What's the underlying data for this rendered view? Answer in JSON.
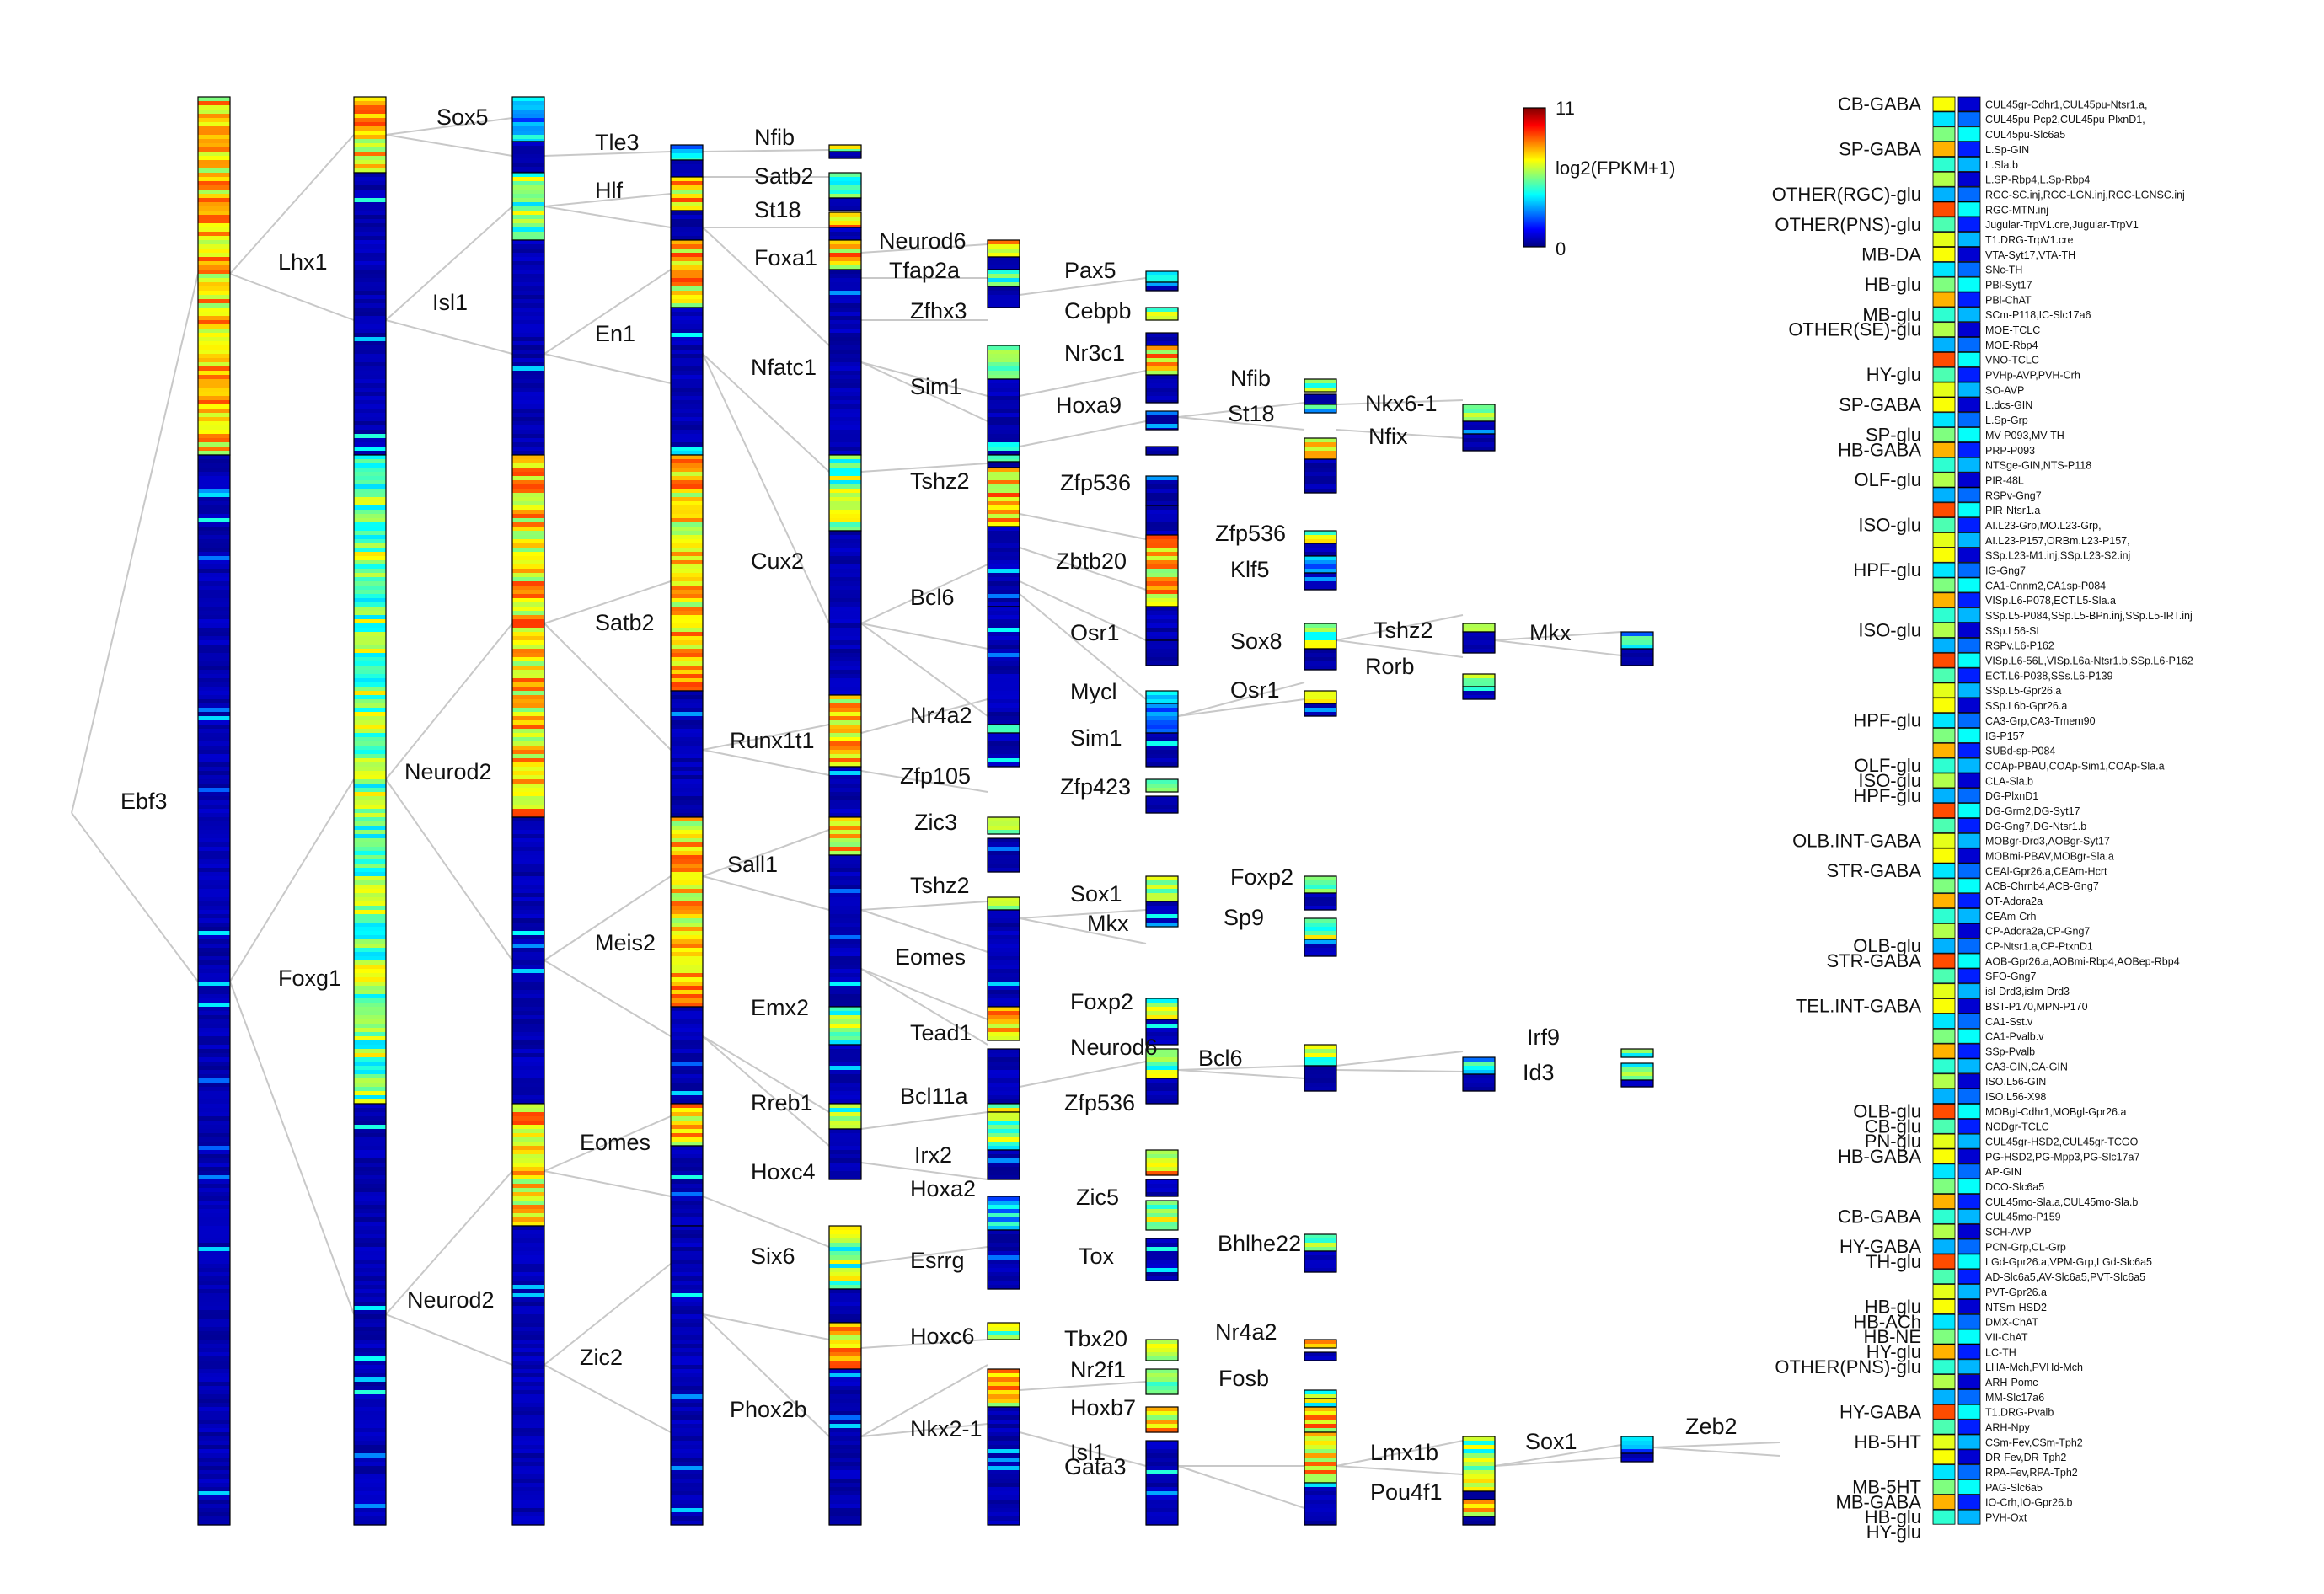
{
  "colorbar": {
    "max_label": "11",
    "min_label": "0",
    "title": "log2(FPKM+1)"
  },
  "colormap": [
    "#00007f",
    "#0000ff",
    "#007fff",
    "#00ffff",
    "#7fff7f",
    "#ffff00",
    "#ff7f00",
    "#ff0000",
    "#7f0000"
  ],
  "tree_genes": [
    "Ebf3",
    "Lhx1",
    "Foxg1",
    "Sox5",
    "Isl1",
    "Neurod2",
    "Neurod2",
    "Tle3",
    "Hlf",
    "En1",
    "Satb2",
    "Meis2",
    "Eomes",
    "Zic2",
    "Nfib",
    "Satb2",
    "St18",
    "Foxa1",
    "Nfatc1",
    "Cux2",
    "Runx1t1",
    "Sall1",
    "Emx2",
    "Rreb1",
    "Hoxc4",
    "Six6",
    "Phox2b",
    "Neurod6",
    "Tfap2a",
    "Zfhx3",
    "Sim1",
    "Tshz2",
    "Bcl6",
    "Nr4a2",
    "Zfp105",
    "Zic3",
    "Tshz2",
    "Eomes",
    "Tead1",
    "Bcl11a",
    "Irx2",
    "Hoxa2",
    "Esrrg",
    "Hoxc6",
    "Nkx2-1",
    "Pax5",
    "Cebpb",
    "Nr3c1",
    "Hoxa9",
    "Zfp536",
    "Zbtb20",
    "Osr1",
    "Mycl",
    "Sim1",
    "Zfp423",
    "Sox1",
    "Mkx",
    "Foxp2",
    "Neurod6",
    "Zfp536",
    "Zic5",
    "Tox",
    "Tbx20",
    "Nr2f1",
    "Isl1",
    "Hoxb7",
    "Gata3",
    "Nfib",
    "St18",
    "Zfp536",
    "Klf5",
    "Sox8",
    "Osr1",
    "Foxp2",
    "Sp9",
    "Bcl6",
    "Bhlhe22",
    "Nr4a2",
    "Fosb",
    "Lmx1b",
    "Pou4f1",
    "Nkx6-1",
    "Nfix",
    "Tshz2",
    "Rorb",
    "Irf9",
    "Id3",
    "Sox1",
    "Mkx",
    "Zeb2"
  ],
  "groups": [
    "CB-GABA",
    "SP-GABA",
    "OTHER(RGC)-glu",
    "OTHER(PNS)-glu",
    "MB-DA",
    "HB-glu",
    "MB-glu",
    "OTHER(SE)-glu",
    "HY-glu",
    "SP-GABA",
    "SP-glu",
    "HB-GABA",
    "OLF-glu",
    "ISO-glu",
    "HPF-glu",
    "ISO-glu",
    "HPF-glu",
    "OLF-glu",
    "ISO-glu",
    "HPF-glu",
    "OLB.INT-GABA",
    "STR-GABA",
    "OLB-glu",
    "STR-GABA",
    "TEL.INT-GABA",
    "OLB-glu",
    "CB-glu",
    "PN-glu",
    "HB-GABA",
    "CB-GABA",
    "HY-GABA",
    "TH-glu",
    "HB-glu",
    "HB-ACh",
    "HB-NE",
    "HY-glu",
    "OTHER(PNS)-glu",
    "HY-GABA",
    "HB-5HT",
    "MB-5HT",
    "MB-GABA",
    "HB-glu",
    "HY-glu"
  ],
  "clusters": [
    "CUL45gr-Cdhr1,CUL45pu-Ntsr1.a,",
    "CUL45pu-Pcp2,CUL45pu-PlxnD1,",
    "CUL45pu-Slc6a5",
    "L.Sp-GIN",
    "L.Sla.b",
    "L.SP-Rbp4,L.Sp-Rbp4",
    "RGC-SC.inj,RGC-LGN.inj,RGC-LGNSC.inj",
    "RGC-MTN.inj",
    "Jugular-TrpV1.cre,Jugular-TrpV1",
    "T1.DRG-TrpV1.cre",
    "VTA-Syt17,VTA-TH",
    "SNc-TH",
    "PBl-Syt17",
    "PBl-ChAT",
    "SCm-P118,IC-Slc17a6",
    "MOE-TCLC",
    "MOE-Rbp4",
    "VNO-TCLC",
    "PVHp-AVP,PVH-Crh",
    "SO-AVP",
    "L.dcs-GIN",
    "L.Sp-Grp",
    "MV-P093,MV-TH",
    "PRP-P093",
    "NTSge-GIN,NTS-P118",
    "PIR-48L",
    "RSPv-Gng7",
    "PIR-Ntsr1.a",
    "AI.L23-Grp,MO.L23-Grp,",
    "AI.L23-P157,ORBm.L23-P157,",
    "SSp.L23-M1.inj,SSp.L23-S2.inj",
    "IG-Gng7",
    "CA1-Cnnm2,CA1sp-P084",
    "VISp.L6-P078,ECT.L5-Sla.a",
    "SSp.L5-P084,SSp.L5-BPn.inj,SSp.L5-IRT.inj",
    "SSp.L56-SL",
    "RSPv.L6-P162",
    "VISp.L6-56L,VISp.L6a-Ntsr1.b,SSp.L6-P162",
    "ECT.L6-P038,SSs.L6-P139",
    "SSp.L5-Gpr26.a",
    "SSp.L6b-Gpr26.a",
    "CA3-Grp,CA3-Tmem90",
    "IG-P157",
    "SUBd-sp-P084",
    "COAp-PBAU,COAp-Sim1,COAp-Sla.a",
    "CLA-Sla.b",
    "DG-PlxnD1",
    "DG-Grm2,DG-Syt17",
    "DG-Gng7,DG-Ntsr1.b",
    "MOBgr-Drd3,AOBgr-Syt17",
    "MOBmi-PBAV,MOBgr-Sla.a",
    "CEAl-Gpr26.a,CEAm-Hcrt",
    "ACB-Chrnb4,ACB-Gng7",
    "OT-Adora2a",
    "CEAm-Crh",
    "CP-Adora2a,CP-Gng7",
    "CP-Ntsr1.a,CP-PtxnD1",
    "AOB-Gpr26.a,AOBmi-Rbp4,AOBep-Rbp4",
    "SFO-Gng7",
    "isl-Drd3,islm-Drd3",
    "BST-P170,MPN-P170",
    "CA1-Sst.v",
    "CA1-Pvalb.v",
    "SSp-Pvalb",
    "CA3-GIN,CA-GIN",
    "ISO.L56-GIN",
    "ISO.L56-X98",
    "MOBgl-Cdhr1,MOBgl-Gpr26.a",
    "NODgr-TCLC",
    "CUL45gr-HSD2,CUL45gr-TCGO",
    "PG-HSD2,PG-Mpp3,PG-Slc17a7",
    "AP-GIN",
    "DCO-Slc6a5",
    "CUL45mo-Sla.a,CUL45mo-Sla.b",
    "CUL45mo-P159",
    "SCH-AVP",
    "PCN-Grp,CL-Grp",
    "LGd-Gpr26.a,VPM-Grp,LGd-Slc6a5",
    "AD-Slc6a5,AV-Slc6a5,PVT-Slc6a5",
    "PVT-Gpr26.a",
    "NTSm-HSD2",
    "DMX-ChAT",
    "VII-ChAT",
    "LC-TH",
    "LHA-Mch,PVHd-Mch",
    "ARH-Pomc",
    "MM-Slc17a6",
    "T1.DRG-Pvalb",
    "ARH-Npy",
    "CSm-Fev,CSm-Tph2",
    "DR-Fev,DR-Tph2",
    "RPA-Fev,RPA-Tph2",
    "PAG-Slc6a5",
    "IO-Crh,IO-Gpr26.b",
    "PVH-Oxt"
  ]
}
